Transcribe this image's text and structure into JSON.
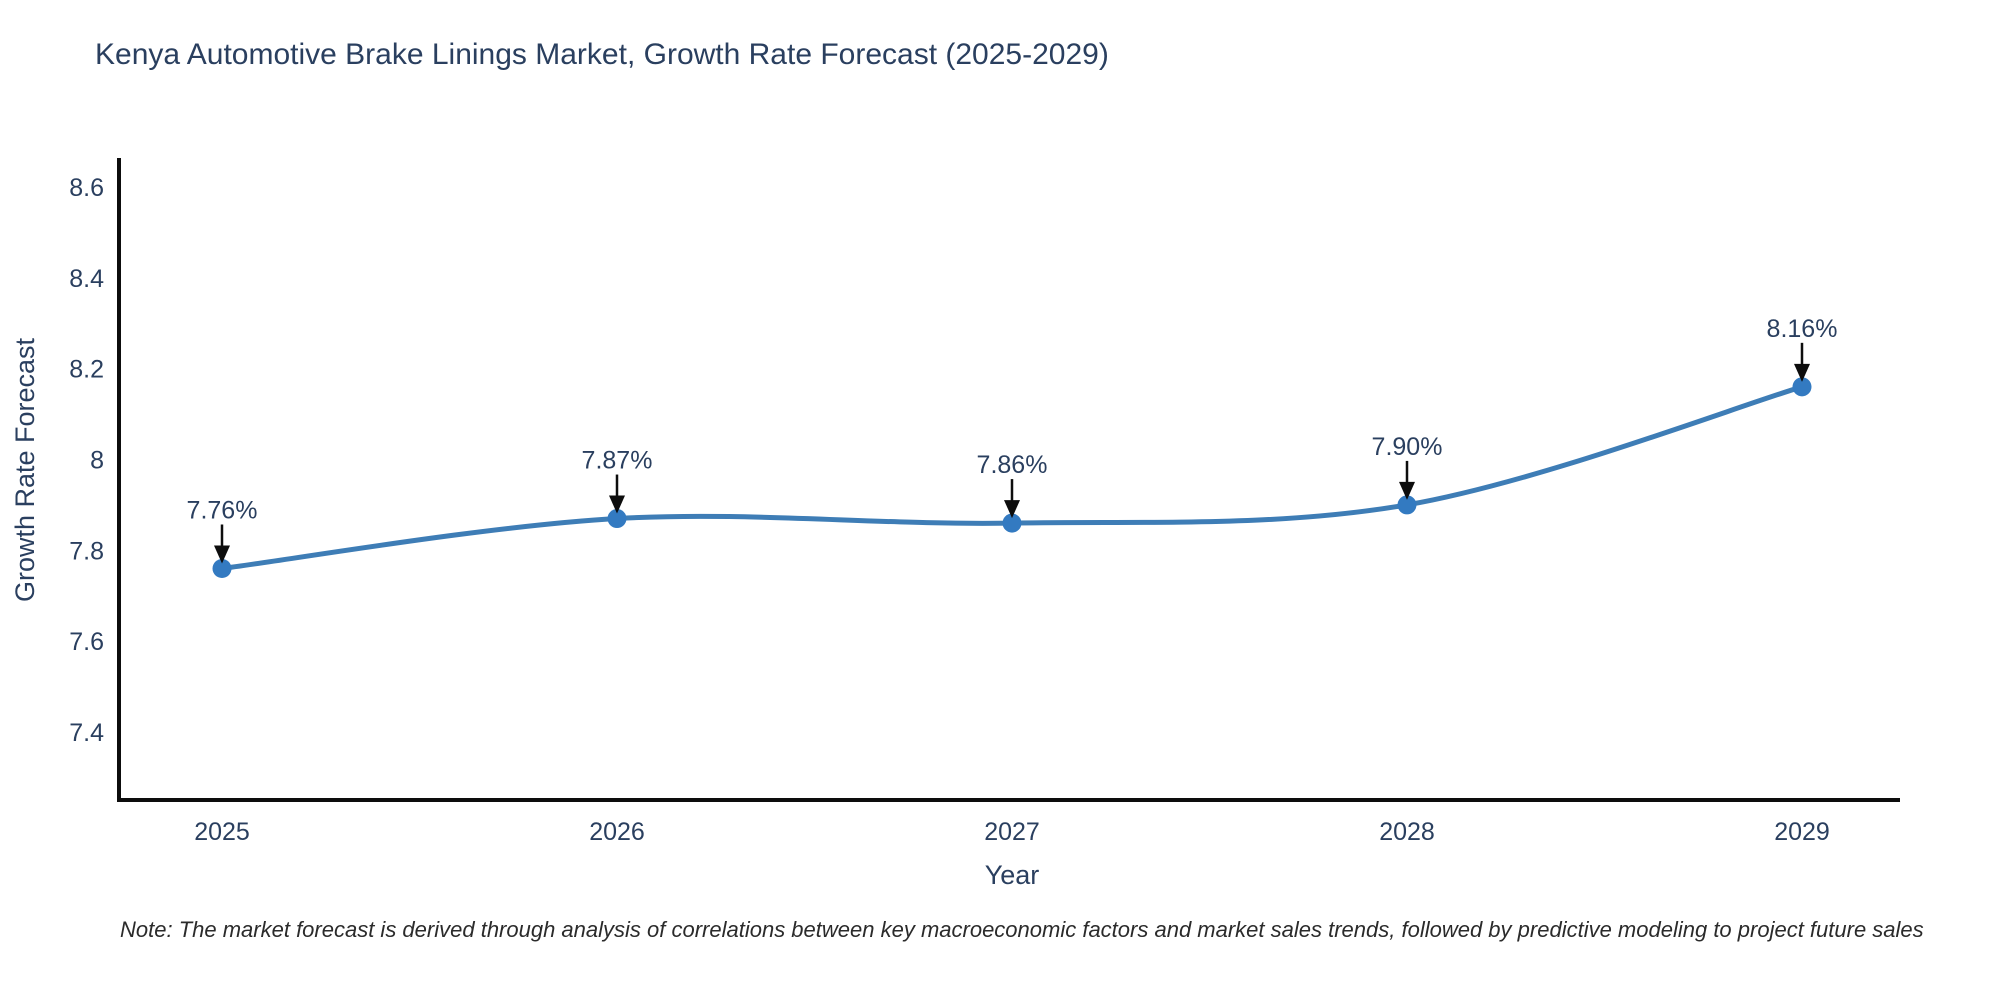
{
  "title": "Kenya Automotive Brake Linings Market, Growth Rate Forecast (2025-2029)",
  "note": "Note: The market forecast is derived through analysis of correlations between key macroeconomic factors and market sales trends, followed by predictive modeling to project future sales",
  "chart_data": {
    "type": "line",
    "title": "Kenya Automotive Brake Linings Market, Growth Rate Forecast (2025-2029)",
    "xlabel": "Year",
    "ylabel": "Growth Rate Forecast",
    "categories": [
      "2025",
      "2026",
      "2027",
      "2028",
      "2029"
    ],
    "values": [
      7.76,
      7.87,
      7.86,
      7.9,
      8.16
    ],
    "point_labels": [
      "7.76%",
      "7.87%",
      "7.86%",
      "7.90%",
      "8.16%"
    ],
    "yticks": [
      7.4,
      7.6,
      7.8,
      8,
      8.2,
      8.4,
      8.6
    ],
    "ytick_labels": [
      "7.4",
      "7.6",
      "7.8",
      "8",
      "8.2",
      "8.4",
      "8.6"
    ],
    "ylim": [
      7.25,
      8.66
    ],
    "grid": false,
    "legend": "none",
    "line_shape": "spline",
    "colors": {
      "line": "#3e7db6",
      "marker": "#337ac1",
      "arrow": "#0d0d0d",
      "axis": "#0d0d0d",
      "text": "#2a3f5f"
    }
  }
}
